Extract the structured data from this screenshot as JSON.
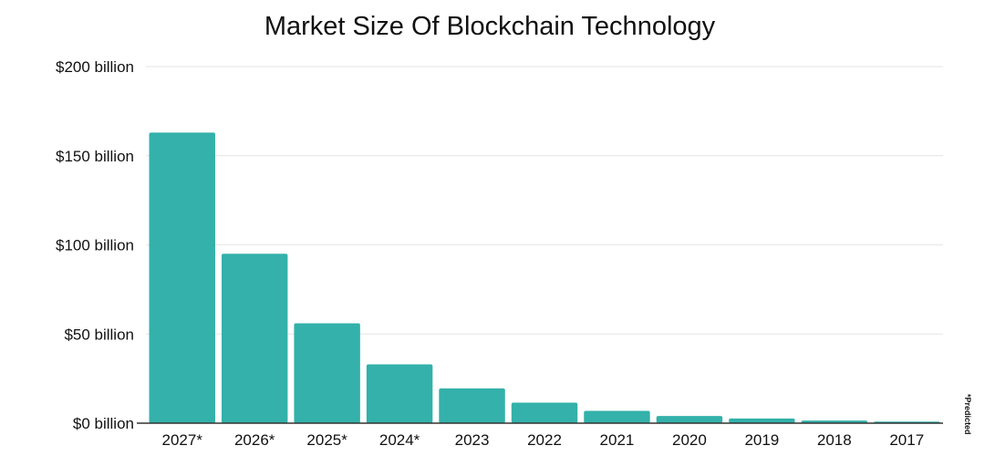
{
  "chart_data": {
    "type": "bar",
    "title": "Market Size Of Blockchain Technology",
    "xlabel": "",
    "ylabel": "",
    "categories": [
      "2027*",
      "2026*",
      "2025*",
      "2024*",
      "2023",
      "2022",
      "2021",
      "2020",
      "2019",
      "2018",
      "2017"
    ],
    "values": [
      163,
      95,
      56,
      33,
      19.5,
      11.5,
      6.9,
      4,
      2.6,
      1.5,
      0.9
    ],
    "ylim": [
      0,
      200
    ],
    "yticks": [
      0,
      50,
      100,
      150,
      200
    ],
    "ytick_labels": [
      "$0 billion",
      "$50 billion",
      "$100 billion",
      "$150 billion",
      "$200 billion"
    ],
    "bar_color": "#33b1aa",
    "grid": true,
    "note": "*Predicted"
  }
}
